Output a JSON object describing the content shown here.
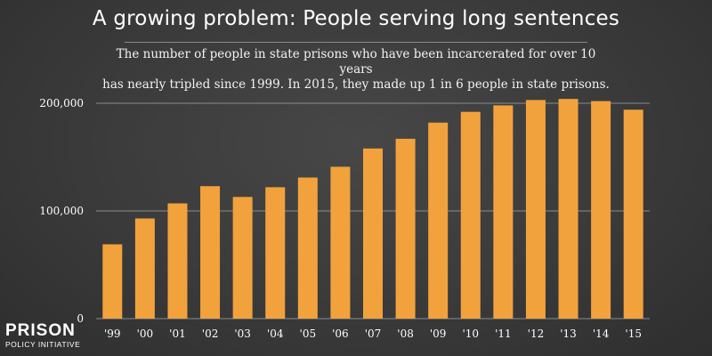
{
  "title": "A growing problem: People serving long sentences",
  "subtitle_lines": [
    "The number of people in state prisons who have been incarcerated for over 10 years",
    "has nearly tripled since 1999. In 2015, they made up 1 in 6 people in state prisons."
  ],
  "logo": {
    "main": "PRISON",
    "sub": "POLICY INITIATIVE"
  },
  "colors": {
    "bar": "#f2a23c",
    "grid": "#8c8c8c",
    "text": "#ffffff"
  },
  "chart_data": {
    "type": "bar",
    "categories": [
      "'99",
      "'00",
      "'01",
      "'02",
      "'03",
      "'04",
      "'05",
      "'06",
      "'07",
      "'08",
      "'09",
      "'10",
      "'11",
      "'12",
      "'13",
      "'14",
      "'15"
    ],
    "values": [
      69000,
      93000,
      107000,
      123000,
      113000,
      122000,
      131000,
      141000,
      158000,
      167000,
      182000,
      192000,
      198000,
      203000,
      204000,
      202000,
      194000
    ],
    "y_ticks": [
      0,
      100000,
      200000
    ],
    "y_tick_labels": [
      "0",
      "100,000",
      "200,000"
    ],
    "ylim": [
      0,
      200000
    ],
    "grid": true
  }
}
